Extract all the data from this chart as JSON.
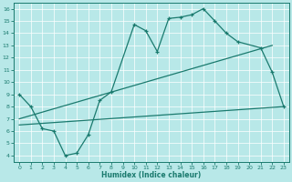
{
  "xlabel": "Humidex (Indice chaleur)",
  "ylabel": "",
  "xlim": [
    -0.5,
    23.5
  ],
  "ylim": [
    3.5,
    16.5
  ],
  "yticks": [
    4,
    5,
    6,
    7,
    8,
    9,
    10,
    11,
    12,
    13,
    14,
    15,
    16
  ],
  "xticks": [
    0,
    1,
    2,
    3,
    4,
    5,
    6,
    7,
    8,
    9,
    10,
    11,
    12,
    13,
    14,
    15,
    16,
    17,
    18,
    19,
    20,
    21,
    22,
    23
  ],
  "line_color": "#1a7a6e",
  "bg_color": "#b8e8e8",
  "grid_color": "#ffffff",
  "line1": {
    "x": [
      0,
      1,
      2,
      3,
      4,
      5,
      6,
      7,
      8,
      10,
      11,
      12,
      13,
      14,
      15,
      16,
      17,
      18,
      19,
      21,
      22,
      23
    ],
    "y": [
      9.0,
      8.0,
      6.2,
      6.0,
      4.0,
      4.2,
      5.7,
      8.5,
      9.2,
      14.7,
      14.2,
      12.5,
      15.2,
      15.3,
      15.5,
      16.0,
      15.0,
      14.0,
      13.3,
      12.8,
      10.8,
      8.0
    ]
  },
  "line2": {
    "x": [
      0,
      22
    ],
    "y": [
      7.0,
      13.0
    ]
  },
  "line3": {
    "x": [
      0,
      23
    ],
    "y": [
      6.5,
      8.0
    ]
  }
}
